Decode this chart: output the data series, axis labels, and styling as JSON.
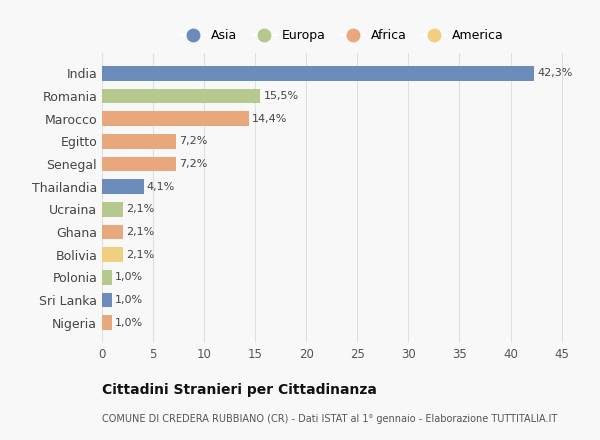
{
  "countries": [
    "India",
    "Romania",
    "Marocco",
    "Egitto",
    "Senegal",
    "Thailandia",
    "Ucraina",
    "Ghana",
    "Bolivia",
    "Polonia",
    "Sri Lanka",
    "Nigeria"
  ],
  "values": [
    42.3,
    15.5,
    14.4,
    7.2,
    7.2,
    4.1,
    2.1,
    2.1,
    2.1,
    1.0,
    1.0,
    1.0
  ],
  "labels": [
    "42,3%",
    "15,5%",
    "14,4%",
    "7,2%",
    "7,2%",
    "4,1%",
    "2,1%",
    "2,1%",
    "2,1%",
    "1,0%",
    "1,0%",
    "1,0%"
  ],
  "continents": [
    "Asia",
    "Europa",
    "Africa",
    "Africa",
    "Africa",
    "Asia",
    "Europa",
    "Africa",
    "America",
    "Europa",
    "Asia",
    "Africa"
  ],
  "colors": {
    "Asia": "#6b8cba",
    "Europa": "#b5c98e",
    "Africa": "#e8a87c",
    "America": "#f0d080"
  },
  "legend_order": [
    "Asia",
    "Europa",
    "Africa",
    "America"
  ],
  "title1": "Cittadini Stranieri per Cittadinanza",
  "title2": "COMUNE DI CREDERA RUBBIANO (CR) - Dati ISTAT al 1° gennaio - Elaborazione TUTTITALIA.IT",
  "xlim": [
    0,
    47
  ],
  "xticks": [
    0,
    5,
    10,
    15,
    20,
    25,
    30,
    35,
    40,
    45
  ],
  "background_color": "#f8f8f8",
  "grid_color": "#e0e0e0"
}
